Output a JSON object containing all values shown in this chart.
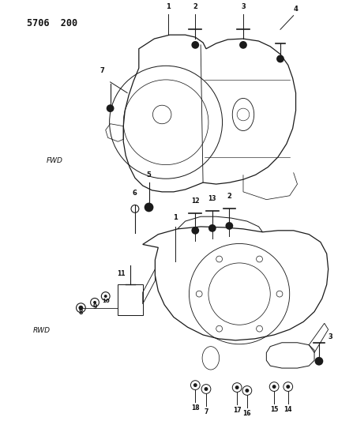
{
  "title": "5706  200",
  "label_fwd": "FWD",
  "label_rwd": "RWD",
  "bg_color": "#ffffff",
  "lc": "#1a1a1a",
  "tc": "#111111",
  "figsize": [
    4.28,
    5.33
  ],
  "dpi": 100
}
